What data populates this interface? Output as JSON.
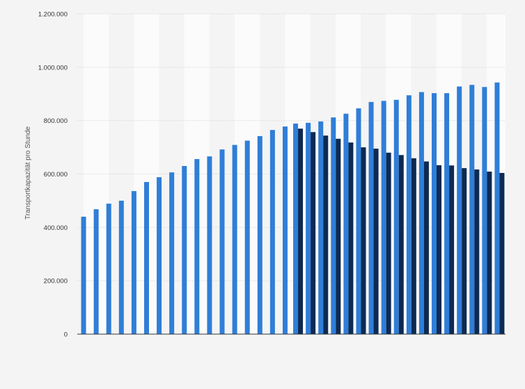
{
  "chart_data": {
    "type": "bar",
    "ylabel": "Transportkapazität pro Stunde",
    "ylim": [
      0,
      1200000
    ],
    "yticks": [
      {
        "value": 0,
        "label": "0"
      },
      {
        "value": 200000,
        "label": "200.000"
      },
      {
        "value": 400000,
        "label": "400.000"
      },
      {
        "value": 600000,
        "label": "600.000"
      },
      {
        "value": 800000,
        "label": "800.000"
      },
      {
        "value": 1000000,
        "label": "1.000.000"
      },
      {
        "value": 1200000,
        "label": "1.200.000"
      }
    ],
    "grid": true,
    "series": [
      {
        "color": "#2f7ed8",
        "values": [
          440000,
          468000,
          489000,
          500000,
          536000,
          570000,
          588000,
          606000,
          630000,
          656000,
          666000,
          692000,
          709000,
          725000,
          742000,
          765000,
          778000,
          789000,
          792000,
          797000,
          812000,
          826000,
          846000,
          870000,
          874000,
          878000,
          895000,
          907000,
          903000,
          903000,
          928000,
          934000,
          926000,
          943000
        ]
      },
      {
        "color": "#0d2a52",
        "values": [
          null,
          null,
          null,
          null,
          null,
          null,
          null,
          null,
          null,
          null,
          null,
          null,
          null,
          null,
          null,
          null,
          null,
          770000,
          757000,
          744000,
          732000,
          718000,
          700000,
          695000,
          680000,
          671000,
          659000,
          647000,
          633000,
          632000,
          622000,
          617000,
          609000,
          604000
        ]
      }
    ]
  }
}
